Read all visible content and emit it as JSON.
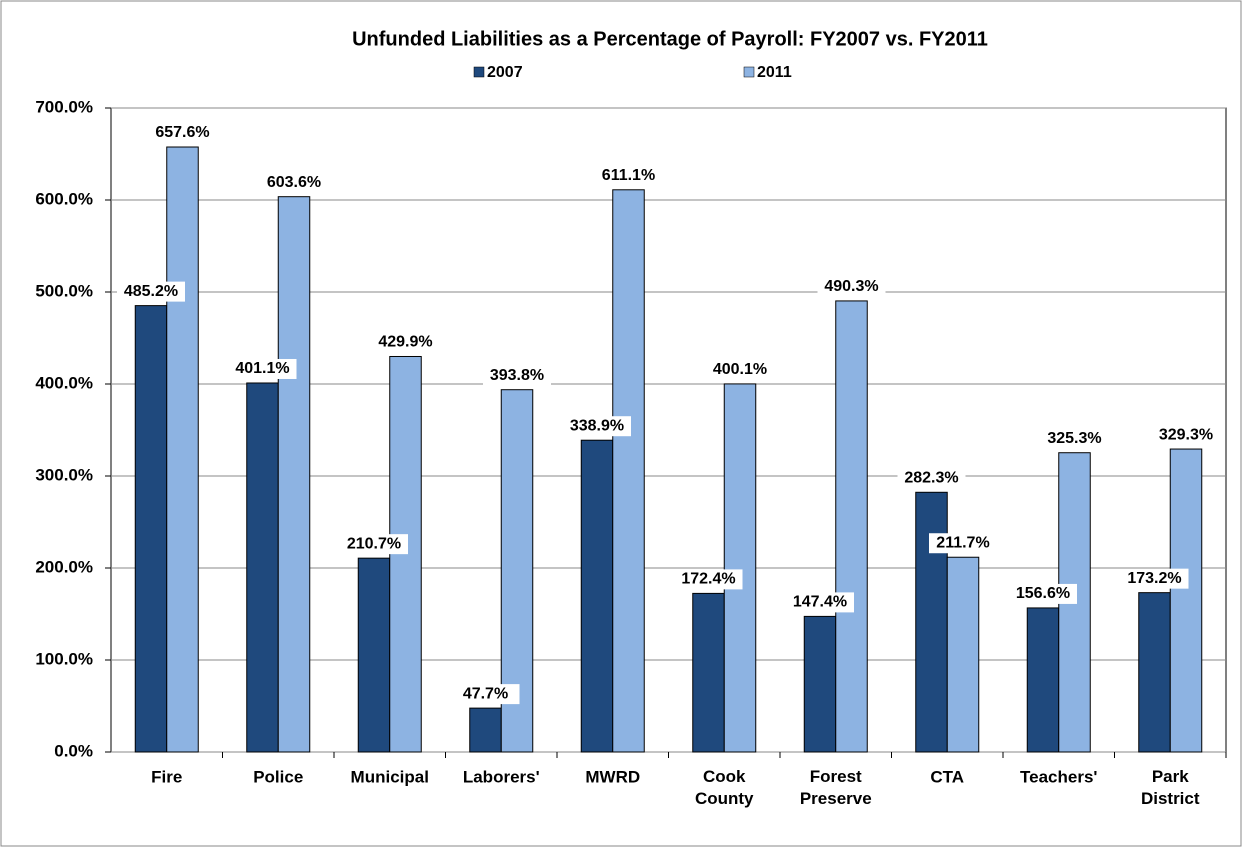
{
  "chart_data": {
    "type": "bar",
    "title": "Unfunded Liabilities as a Percentage of Payroll: FY2007 vs. FY2011",
    "categories": [
      "Fire",
      "Police",
      "Municipal",
      "Laborers'",
      "MWRD",
      "Cook County",
      "Forest Preserve",
      "CTA",
      "Teachers'",
      "Park District"
    ],
    "series": [
      {
        "name": "2007",
        "color": "#1f497d",
        "values": [
          485.2,
          401.1,
          210.7,
          47.7,
          338.9,
          172.4,
          147.4,
          282.3,
          156.6,
          173.2
        ],
        "value_labels": [
          "485.2%",
          "401.1%",
          "210.7%",
          "47.7%",
          "338.9%",
          "172.4%",
          "147.4%",
          "282.3%",
          "156.6%",
          "173.2%"
        ]
      },
      {
        "name": "2011",
        "color": "#8db3e2",
        "values": [
          657.6,
          603.6,
          429.9,
          393.8,
          611.1,
          400.1,
          490.3,
          211.7,
          325.3,
          329.3
        ],
        "value_labels": [
          "657.6%",
          "603.6%",
          "429.9%",
          "393.8%",
          "611.1%",
          "400.1%",
          "490.3%",
          "211.7%",
          "325.3%",
          "329.3%"
        ]
      }
    ],
    "ylim": [
      0,
      700
    ],
    "yticks": [
      {
        "value": 0,
        "label": "0.0%"
      },
      {
        "value": 100,
        "label": "100.0%"
      },
      {
        "value": 200,
        "label": "200.0%"
      },
      {
        "value": 300,
        "label": "300.0%"
      },
      {
        "value": 400,
        "label": "400.0%"
      },
      {
        "value": 500,
        "label": "500.0%"
      },
      {
        "value": 600,
        "label": "600.0%"
      },
      {
        "value": 700,
        "label": "700.0%"
      }
    ],
    "grid": true,
    "legend": "top"
  }
}
